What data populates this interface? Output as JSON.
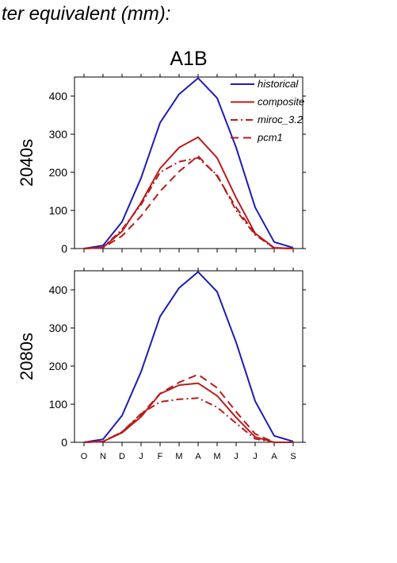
{
  "page_title": "ter equivalent (mm):",
  "scenario": "A1B",
  "chart_data": [
    {
      "type": "line",
      "row_label": "2040s",
      "categories": [
        "O",
        "N",
        "D",
        "J",
        "F",
        "M",
        "A",
        "M",
        "J",
        "J",
        "A",
        "S"
      ],
      "ylim": [
        0,
        450
      ],
      "yticks": [
        0,
        100,
        200,
        300,
        400
      ],
      "grid": false,
      "legend_position": "top-right",
      "series": [
        {
          "name": "historical",
          "color": "#1c1cb4",
          "dash": "",
          "values": [
            0,
            8,
            70,
            185,
            330,
            405,
            447,
            395,
            265,
            108,
            17,
            2
          ]
        },
        {
          "name": "composite",
          "color": "#b81c1c",
          "dash": "",
          "values": [
            0,
            3,
            45,
            120,
            210,
            265,
            292,
            238,
            133,
            40,
            2,
            0
          ]
        },
        {
          "name": "miroc_3.2",
          "color": "#b81c1c",
          "dash": "9,4,2,4",
          "values": [
            0,
            3,
            50,
            115,
            200,
            228,
            238,
            193,
            100,
            36,
            1,
            0
          ]
        },
        {
          "name": "pcm1",
          "color": "#b81c1c",
          "dash": "10,6",
          "values": [
            0,
            2,
            33,
            85,
            150,
            202,
            243,
            190,
            108,
            38,
            1,
            0
          ]
        }
      ]
    },
    {
      "type": "line",
      "row_label": "2080s",
      "categories": [
        "O",
        "N",
        "D",
        "J",
        "F",
        "M",
        "A",
        "M",
        "J",
        "J",
        "A",
        "S"
      ],
      "ylim": [
        0,
        450
      ],
      "yticks": [
        0,
        100,
        200,
        300,
        400
      ],
      "grid": false,
      "series": [
        {
          "name": "historical",
          "color": "#1c1cb4",
          "dash": "",
          "values": [
            0,
            8,
            70,
            185,
            330,
            405,
            447,
            395,
            262,
            108,
            17,
            2
          ]
        },
        {
          "name": "composite",
          "color": "#b81c1c",
          "dash": "",
          "values": [
            0,
            2,
            25,
            67,
            127,
            150,
            155,
            122,
            65,
            14,
            0,
            0
          ]
        },
        {
          "name": "miroc_3.2",
          "color": "#b81c1c",
          "dash": "9,4,2,4",
          "values": [
            0,
            2,
            27,
            75,
            106,
            113,
            116,
            92,
            50,
            9,
            0,
            0
          ]
        },
        {
          "name": "pcm1",
          "color": "#b81c1c",
          "dash": "10,6",
          "values": [
            0,
            2,
            27,
            72,
            128,
            157,
            178,
            143,
            80,
            22,
            0,
            0
          ]
        }
      ]
    }
  ]
}
